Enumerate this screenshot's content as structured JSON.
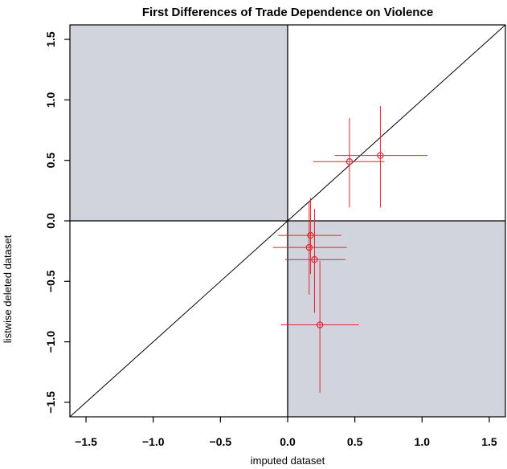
{
  "chart_data": {
    "type": "scatter",
    "title": "First Differences of Trade Dependence on Violence",
    "xlabel": "imputed dataset",
    "ylabel": "listwise deleted dataset",
    "xlim": [
      -1.62,
      1.62
    ],
    "ylim": [
      -1.62,
      1.62
    ],
    "x_ticks": [
      -1.5,
      -1.0,
      -0.5,
      0.0,
      0.5,
      1.0,
      1.5
    ],
    "y_ticks": [
      -1.5,
      -1.0,
      -0.5,
      0.0,
      0.5,
      1.0,
      1.5
    ],
    "x_tick_labels": [
      "−1.5",
      "−1.0",
      "−0.5",
      "0.0",
      "0.5",
      "1.0",
      "1.5"
    ],
    "y_tick_labels": [
      "−1.5",
      "−1.0",
      "−0.5",
      "0.0",
      "0.5",
      "1.0",
      "1.5"
    ],
    "shaded_quadrants": [
      "top-left",
      "bottom-right"
    ],
    "reference_lines": [
      "y = x",
      "x = 0",
      "y = 0"
    ],
    "colors": {
      "points": "#e8232a",
      "shade": "#d1d4dc",
      "lines": "#000000"
    },
    "points": [
      {
        "x": 0.69,
        "y": 0.54,
        "x_low": 0.35,
        "x_high": 1.04,
        "y_low": 0.11,
        "y_high": 0.95
      },
      {
        "x": 0.46,
        "y": 0.49,
        "x_low": 0.19,
        "x_high": 0.72,
        "y_low": 0.11,
        "y_high": 0.85
      },
      {
        "x": 0.17,
        "y": -0.12,
        "x_low": -0.07,
        "x_high": 0.4,
        "y_low": -0.44,
        "y_high": 0.19
      },
      {
        "x": 0.16,
        "y": -0.22,
        "x_low": -0.11,
        "x_high": 0.44,
        "y_low": -0.61,
        "y_high": 0.16
      },
      {
        "x": 0.2,
        "y": -0.32,
        "x_low": -0.02,
        "x_high": 0.43,
        "y_low": -0.76,
        "y_high": 0.1
      },
      {
        "x": 0.24,
        "y": -0.86,
        "x_low": -0.05,
        "x_high": 0.53,
        "y_low": -1.42,
        "y_high": -0.33
      }
    ]
  }
}
